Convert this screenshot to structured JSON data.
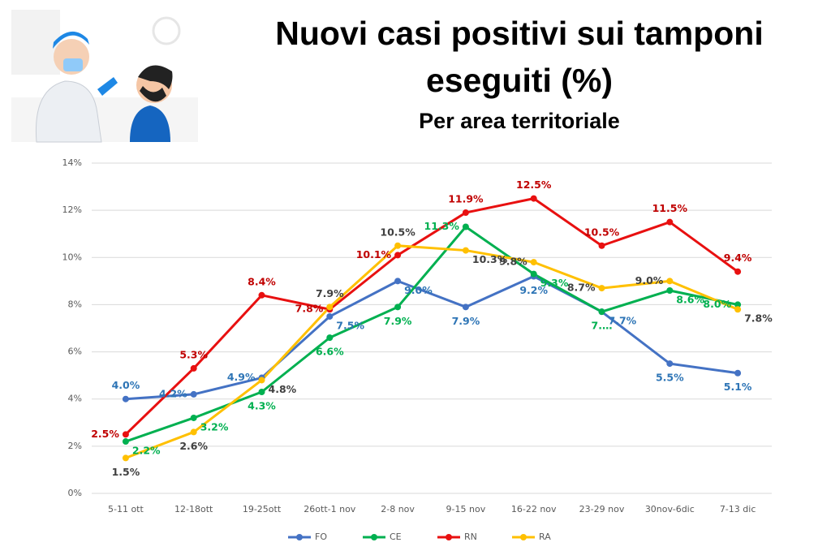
{
  "chart_data": {
    "type": "line",
    "title": "Nuovi casi positivi sui tamponi eseguiti (%)",
    "subtitle": "Per area territoriale",
    "categories": [
      "5-11 ott",
      "12-18ott",
      "19-25ott",
      "26ott-1 nov",
      "2-8 nov",
      "9-15 nov",
      "16-22 nov",
      "23-29 nov",
      "30nov-6dic",
      "7-13 dic"
    ],
    "ylim": [
      0,
      14
    ],
    "yticks": [
      {
        "value": 0,
        "label": "0%"
      },
      {
        "value": 2,
        "label": "2%"
      },
      {
        "value": 4,
        "label": "4%"
      },
      {
        "value": 6,
        "label": "6%"
      },
      {
        "value": 8,
        "label": "8%"
      },
      {
        "value": 10,
        "label": "10%"
      },
      {
        "value": 12,
        "label": "12%"
      },
      {
        "value": 14,
        "label": "14%"
      }
    ],
    "grid": true,
    "legend": "bottom",
    "series": [
      {
        "name": "FO",
        "color": "#4472c4",
        "label_color": "#2e75b6",
        "values": [
          4.0,
          4.2,
          4.9,
          7.5,
          9.0,
          7.9,
          9.2,
          7.7,
          5.5,
          5.1
        ],
        "value_labels": [
          "4.0%",
          "4.2%",
          "4.9%",
          "7.5%",
          "9.0%",
          "7.9%",
          "9.2%",
          "7.7%",
          "5.5%",
          "5.1%"
        ]
      },
      {
        "name": "CE",
        "color": "#00b050",
        "label_color": "#00b050",
        "values": [
          2.2,
          3.2,
          4.3,
          6.6,
          7.9,
          11.3,
          9.3,
          7.7,
          8.6,
          8.0
        ],
        "value_labels": [
          "2.2%",
          "3.2%",
          "4.3%",
          "6.6%",
          "7.9%",
          "11.3%",
          "9.3%",
          "7.…",
          "8.6%",
          "8.0%"
        ]
      },
      {
        "name": "RN",
        "color": "#e81010",
        "label_color": "#c00000",
        "values": [
          2.5,
          5.3,
          8.4,
          7.8,
          10.1,
          11.9,
          12.5,
          10.5,
          11.5,
          9.4
        ],
        "value_labels": [
          "2.5%",
          "5.3%",
          "8.4%",
          "7.8%",
          "10.1%",
          "11.9%",
          "12.5%",
          "10.5%",
          "11.5%",
          "9.4%"
        ]
      },
      {
        "name": "RA",
        "color": "#ffc000",
        "label_color": "#404040",
        "values": [
          1.5,
          2.6,
          4.8,
          7.9,
          10.5,
          10.3,
          9.8,
          8.7,
          9.0,
          7.8
        ],
        "value_labels": [
          "1.5%",
          "2.6%",
          "4.8%",
          "7.9%",
          "10.5%",
          "10.3%",
          "9.8%",
          "8.7%",
          "9.0%",
          "7.8%"
        ]
      }
    ]
  }
}
